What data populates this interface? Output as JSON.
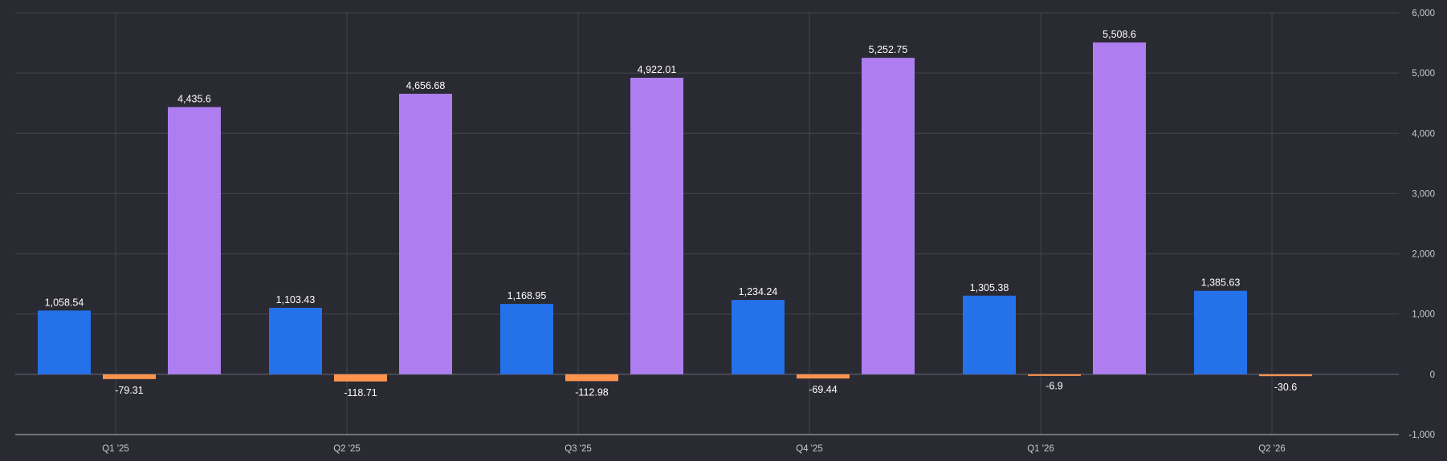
{
  "chart_data": {
    "type": "bar",
    "categories": [
      "Q1 '25",
      "Q2 '25",
      "Q3 '25",
      "Q4 '25",
      "Q1 '26",
      "Q2 '26"
    ],
    "series": [
      {
        "color": "#2471ea",
        "values": [
          1058.54,
          1103.43,
          1168.95,
          1234.24,
          1305.38,
          1385.63
        ]
      },
      {
        "color": "#ff944d",
        "values": [
          -79.31,
          -118.71,
          -112.98,
          -69.44,
          -6.9,
          -30.6
        ]
      },
      {
        "color": "#ae7ef1",
        "values": [
          4435.6,
          4656.68,
          4922.01,
          5252.75,
          5508.6,
          null
        ]
      }
    ],
    "ylim": [
      -1000,
      6000
    ],
    "yticks": [
      -1000,
      0,
      1000,
      2000,
      3000,
      4000,
      5000,
      6000
    ],
    "y_axis_position": "right",
    "grid": true,
    "title": "",
    "xlabel": "",
    "ylabel": ""
  }
}
